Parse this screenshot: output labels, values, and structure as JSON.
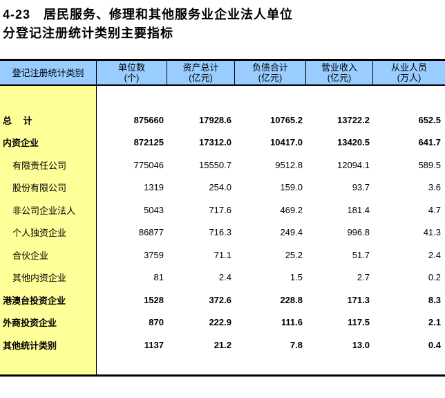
{
  "title": {
    "line1": "4-23　居民服务、修理和其他服务业企业法人单位",
    "line2": "分登记注册统计类别主要指标"
  },
  "colors": {
    "header_bg": "#99CCFF",
    "label_column_bg": "#FFFF99",
    "border": "#000000"
  },
  "table": {
    "columns": [
      {
        "title": "登记注册统计类别",
        "unit": ""
      },
      {
        "title": "单位数",
        "unit": "(个)"
      },
      {
        "title": "资产总计",
        "unit": "(亿元)"
      },
      {
        "title": "负债合计",
        "unit": "(亿元)"
      },
      {
        "title": "营业收入",
        "unit": "(亿元)"
      },
      {
        "title": "从业人员",
        "unit": "(万人)"
      }
    ],
    "rows": [
      {
        "label": "总　 计",
        "bold": true,
        "indent": false,
        "values": [
          "875660",
          "17928.6",
          "10765.2",
          "13722.2",
          "652.5"
        ]
      },
      {
        "label": "内资企业",
        "bold": true,
        "indent": false,
        "values": [
          "872125",
          "17312.0",
          "10417.0",
          "13420.5",
          "641.7"
        ]
      },
      {
        "label": "有限责任公司",
        "bold": false,
        "indent": true,
        "values": [
          "775046",
          "15550.7",
          "9512.8",
          "12094.1",
          "589.5"
        ]
      },
      {
        "label": "股份有限公司",
        "bold": false,
        "indent": true,
        "values": [
          "1319",
          "254.0",
          "159.0",
          "93.7",
          "3.6"
        ]
      },
      {
        "label": "非公司企业法人",
        "bold": false,
        "indent": true,
        "values": [
          "5043",
          "717.6",
          "469.2",
          "181.4",
          "4.7"
        ]
      },
      {
        "label": "个人独资企业",
        "bold": false,
        "indent": true,
        "values": [
          "86877",
          "716.3",
          "249.4",
          "996.8",
          "41.3"
        ]
      },
      {
        "label": "合伙企业",
        "bold": false,
        "indent": true,
        "values": [
          "3759",
          "71.1",
          "25.2",
          "51.7",
          "2.4"
        ]
      },
      {
        "label": "其他内资企业",
        "bold": false,
        "indent": true,
        "values": [
          "81",
          "2.4",
          "1.5",
          "2.7",
          "0.2"
        ]
      },
      {
        "label": "港澳台投资企业",
        "bold": true,
        "indent": false,
        "values": [
          "1528",
          "372.6",
          "228.8",
          "171.3",
          "8.3"
        ]
      },
      {
        "label": "外商投资企业",
        "bold": true,
        "indent": false,
        "values": [
          "870",
          "222.9",
          "111.6",
          "117.5",
          "2.1"
        ]
      },
      {
        "label": "其他统计类别",
        "bold": true,
        "indent": false,
        "values": [
          "1137",
          "21.2",
          "7.8",
          "13.0",
          "0.4"
        ]
      }
    ]
  }
}
